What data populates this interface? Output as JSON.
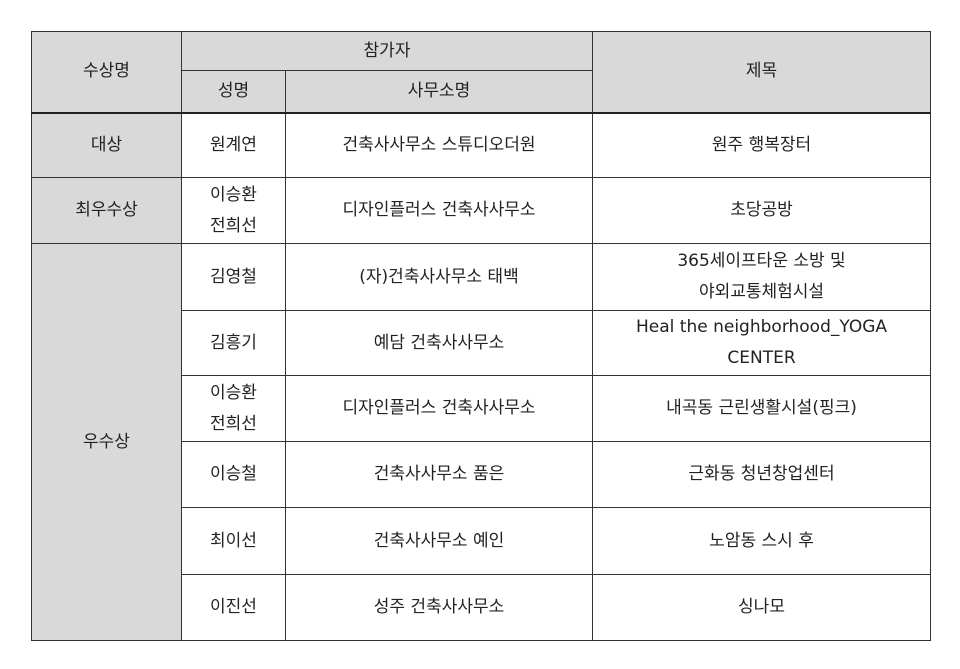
{
  "headers": {
    "award": "수상명",
    "participants": "참가자",
    "name": "성명",
    "office": "사무소명",
    "title": "제목"
  },
  "rows": [
    {
      "award": "대상",
      "name": "원계연",
      "office": "건축사사무소 스튜디오더원",
      "title": "원주 행복장터"
    },
    {
      "award": "최우수상",
      "name": "이승환\n전희선",
      "office": "디자인플러스 건축사사무소",
      "title": "초당공방"
    },
    {
      "award": "우수상",
      "name": "김영철",
      "office": "(자)건축사사무소 태백",
      "title": "365세이프타운 소방 및\n야외교통체험시설"
    },
    {
      "name": "김흥기",
      "office": "예담 건축사사무소",
      "title": "Heal the neighborhood_YOGA\nCENTER"
    },
    {
      "name": "이승환\n전희선",
      "office": "디자인플러스 건축사사무소",
      "title": "내곡동 근린생활시설(핑크)"
    },
    {
      "name": "이승철",
      "office": "건축사사무소 품은",
      "title": "근화동 청년창업센터"
    },
    {
      "name": "최이선",
      "office": "건축사사무소 예인",
      "title": "노암동 스시 후"
    },
    {
      "name": "이진선",
      "office": "성주 건축사사무소",
      "title": "싱나모"
    }
  ]
}
